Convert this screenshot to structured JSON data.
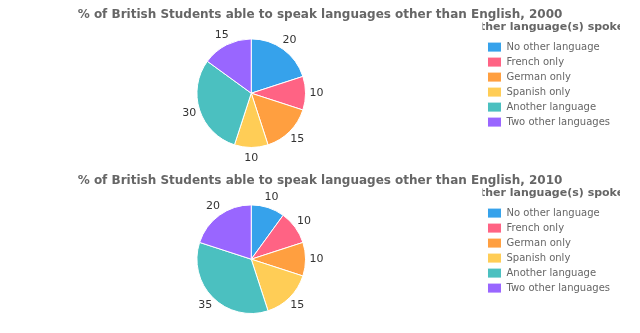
{
  "chart_data": [
    {
      "type": "pie",
      "title": "% of British Students able to speak languages other than English, 2000",
      "categories": [
        "No other language",
        "French only",
        "German only",
        "Spanish only",
        "Another language",
        "Two other languages"
      ],
      "values": [
        20,
        10,
        15,
        10,
        30,
        15
      ],
      "legend": "right",
      "legend_title": "Other language(s) spoken",
      "data_labels": true
    },
    {
      "type": "pie",
      "title": "% of British Students able to speak languages other than English, 2010",
      "categories": [
        "No other language",
        "French only",
        "German only",
        "Spanish only",
        "Another language",
        "Two other languages"
      ],
      "values": [
        10,
        10,
        10,
        15,
        35,
        20
      ],
      "legend": "right",
      "legend_title": "Other language(s) spoken",
      "data_labels": true
    }
  ]
}
